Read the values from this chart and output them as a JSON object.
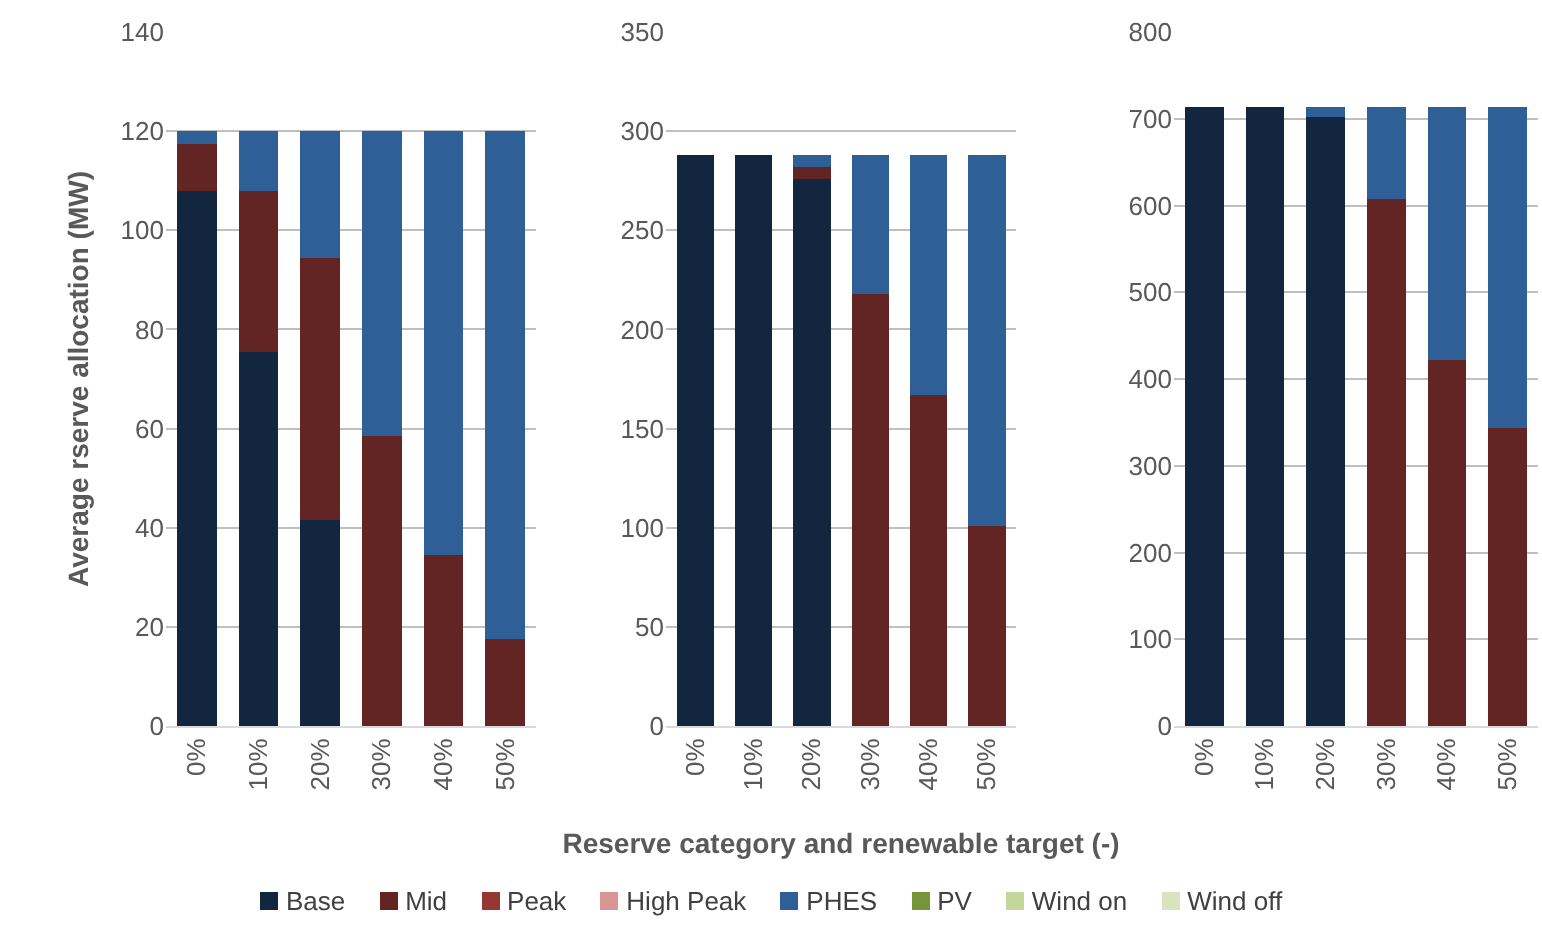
{
  "chart_data": [
    {
      "type": "bar",
      "stacked": true,
      "ylabel": "Average rserve allocation (MW)",
      "categories": [
        "0%",
        "10%",
        "20%",
        "30%",
        "40%",
        "50%"
      ],
      "ylim": [
        0,
        140
      ],
      "yticks": [
        0,
        20,
        40,
        60,
        80,
        100,
        120,
        140
      ],
      "grid": "y",
      "series": [
        {
          "color": "#12263f",
          "values": [
            108,
            75.5,
            41.5,
            0,
            0,
            0
          ]
        },
        {
          "color": "#632523",
          "values": [
            9.5,
            32.5,
            53,
            58.5,
            34.5,
            17.5
          ]
        },
        {
          "color": "#953735",
          "values": [
            0,
            0,
            0,
            0,
            0,
            0
          ]
        },
        {
          "color": "#d99694",
          "values": [
            0,
            0,
            0,
            0,
            0,
            0
          ]
        },
        {
          "color": "#2e5f97",
          "values": [
            2.5,
            12,
            25.5,
            61.5,
            85.5,
            102.5
          ]
        },
        {
          "color": "#77933c",
          "values": [
            0,
            0,
            0,
            0,
            0,
            0
          ]
        },
        {
          "color": "#c3d69b",
          "values": [
            0,
            0,
            0,
            0,
            0,
            0
          ]
        },
        {
          "color": "#d7e4bd",
          "values": [
            0,
            0,
            0,
            0,
            0,
            0
          ]
        }
      ]
    },
    {
      "type": "bar",
      "stacked": true,
      "xlabel": "Reserve category and renewable target (-)",
      "categories": [
        "0%",
        "10%",
        "20%",
        "30%",
        "40%",
        "50%"
      ],
      "ylim": [
        0,
        350
      ],
      "yticks": [
        0,
        50,
        100,
        150,
        200,
        250,
        300,
        350
      ],
      "grid": "y",
      "legend": "bottom",
      "series": [
        {
          "name": "Base",
          "color": "#12263f",
          "values": [
            288,
            288,
            276,
            0,
            0,
            0
          ]
        },
        {
          "name": "Mid",
          "color": "#632523",
          "values": [
            0,
            0,
            6,
            218,
            167,
            101
          ]
        },
        {
          "name": "Peak",
          "color": "#953735",
          "values": [
            0,
            0,
            0,
            0,
            0,
            0
          ]
        },
        {
          "name": "High Peak",
          "color": "#d99694",
          "values": [
            0,
            0,
            0,
            0,
            0,
            0
          ]
        },
        {
          "name": "PHES",
          "color": "#2e5f97",
          "values": [
            0,
            0,
            6,
            70,
            121,
            187
          ]
        },
        {
          "name": "PV",
          "color": "#77933c",
          "values": [
            0,
            0,
            0,
            0,
            0,
            0
          ]
        },
        {
          "name": "Wind on",
          "color": "#c3d69b",
          "values": [
            0,
            0,
            0,
            0,
            0,
            0
          ]
        },
        {
          "name": "Wind off",
          "color": "#d7e4bd",
          "values": [
            0,
            0,
            0,
            0,
            0,
            0
          ]
        }
      ]
    },
    {
      "type": "bar",
      "stacked": true,
      "categories": [
        "0%",
        "10%",
        "20%",
        "30%",
        "40%",
        "50%"
      ],
      "ylim": [
        0,
        800
      ],
      "yticks": [
        0,
        100,
        200,
        300,
        400,
        500,
        600,
        700,
        800
      ],
      "grid": "y",
      "series": [
        {
          "color": "#12263f",
          "values": [
            713,
            713,
            702,
            0,
            0,
            0
          ]
        },
        {
          "color": "#632523",
          "values": [
            0,
            0,
            0,
            608,
            422,
            343
          ]
        },
        {
          "color": "#953735",
          "values": [
            0,
            0,
            0,
            0,
            0,
            0
          ]
        },
        {
          "color": "#d99694",
          "values": [
            0,
            0,
            0,
            0,
            0,
            0
          ]
        },
        {
          "color": "#2e5f97",
          "values": [
            0,
            0,
            11,
            105,
            291,
            370
          ]
        },
        {
          "color": "#77933c",
          "values": [
            0,
            0,
            0,
            0,
            0,
            0
          ]
        },
        {
          "color": "#c3d69b",
          "values": [
            0,
            0,
            0,
            0,
            0,
            0
          ]
        },
        {
          "color": "#d7e4bd",
          "values": [
            0,
            0,
            0,
            0,
            0,
            0
          ]
        }
      ]
    }
  ]
}
